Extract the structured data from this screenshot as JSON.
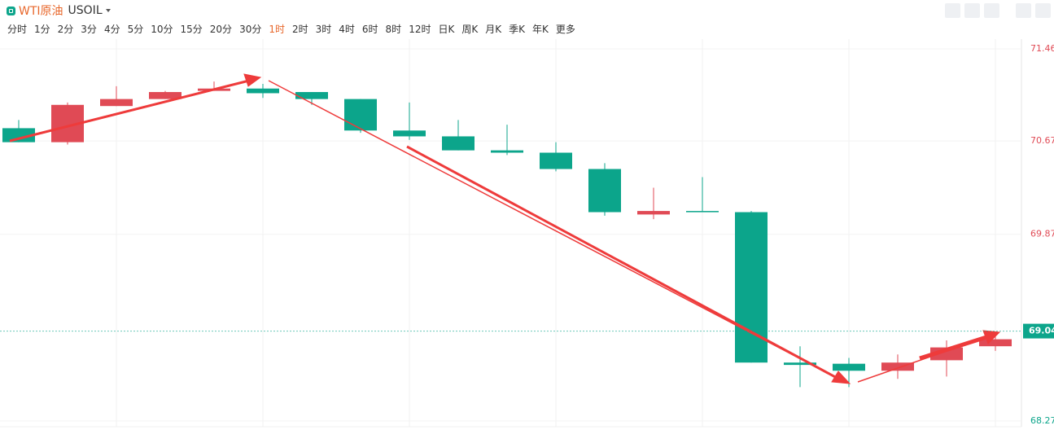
{
  "header": {
    "name": "WTI原油",
    "code": "USOIL",
    "periods": [
      "分时",
      "1分",
      "2分",
      "3分",
      "4分",
      "5分",
      "10分",
      "15分",
      "20分",
      "30分",
      "1时",
      "2时",
      "3时",
      "4时",
      "6时",
      "8时",
      "12时",
      "日K",
      "周K",
      "月K",
      "季K",
      "年K",
      "更多"
    ],
    "active_period": 10
  },
  "chart_data": {
    "type": "candlestick",
    "open": [
      70.78,
      70.66,
      70.97,
      71.03,
      71.1,
      71.12,
      71.09,
      71.03,
      70.76,
      70.71,
      70.59,
      70.57,
      70.43,
      70.04,
      70.07,
      70.06,
      68.77,
      68.76,
      68.7,
      68.79,
      68.91
    ],
    "high": [
      70.85,
      71.0,
      71.14,
      71.1,
      71.18,
      71.16,
      71.09,
      71.03,
      71.0,
      70.85,
      70.81,
      70.66,
      70.48,
      70.27,
      70.36,
      70.07,
      68.91,
      68.81,
      68.84,
      68.96,
      69.02
    ],
    "low": [
      70.66,
      70.64,
      70.97,
      71.03,
      71.1,
      71.04,
      70.98,
      70.74,
      70.68,
      70.59,
      70.55,
      70.41,
      70.03,
      70.0,
      70.06,
      68.77,
      68.56,
      68.56,
      68.63,
      68.65,
      68.87
    ],
    "close": [
      70.66,
      70.98,
      71.03,
      71.09,
      71.12,
      71.08,
      71.03,
      70.76,
      70.71,
      70.59,
      70.57,
      70.43,
      70.06,
      70.07,
      70.06,
      68.77,
      68.75,
      68.7,
      68.77,
      68.9,
      68.97
    ],
    "up_color": "#e04a55",
    "down_color": "#0ca58b",
    "ylim": [
      68.22,
      71.6
    ],
    "yticks": [
      68.27,
      69.87,
      70.67,
      71.46
    ],
    "last_price": 69.04,
    "grid": true
  }
}
